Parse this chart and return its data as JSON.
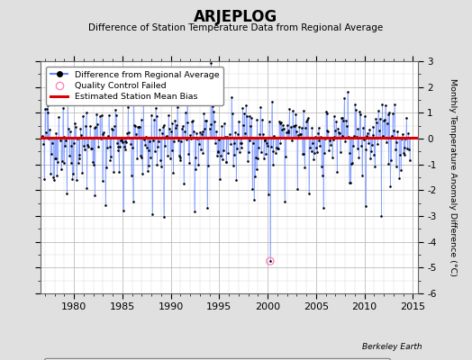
{
  "title": "ARJEPLOG",
  "subtitle": "Difference of Station Temperature Data from Regional Average",
  "ylabel": "Monthly Temperature Anomaly Difference (°C)",
  "xlabel_bottom": "Berkeley Earth",
  "xlim": [
    1976.5,
    2015.5
  ],
  "ylim": [
    -6,
    3
  ],
  "yticks": [
    -6,
    -5,
    -4,
    -3,
    -2,
    -1,
    0,
    1,
    2,
    3
  ],
  "xticks": [
    1980,
    1985,
    1990,
    1995,
    2000,
    2005,
    2010,
    2015
  ],
  "bias_level": 0.05,
  "bias_color": "#dd0000",
  "line_color": "#6688ff",
  "dot_color": "#000000",
  "qc_fail_color": "#ff88bb",
  "background_color": "#e0e0e0",
  "plot_bg_color": "#ffffff",
  "seed": 42,
  "n_months": 456,
  "start_year": 1976.75,
  "outlier_year": 2000.25,
  "outlier_value": -4.75
}
